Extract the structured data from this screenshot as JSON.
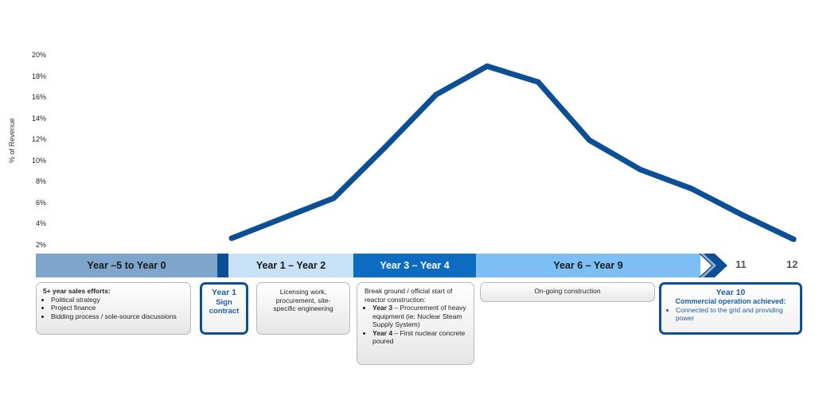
{
  "chart_data": {
    "type": "line",
    "ylabel": "% of Revenue",
    "ylim": [
      2,
      20
    ],
    "yticks": [
      "2%",
      "4%",
      "6%",
      "8%",
      "10%",
      "12%",
      "14%",
      "16%",
      "18%",
      "20%"
    ],
    "x": [
      1,
      2,
      3,
      4,
      5,
      6,
      7,
      8,
      9,
      10,
      11,
      12
    ],
    "values": [
      2.7,
      4.6,
      6.5,
      11.3,
      16.3,
      19.0,
      17.5,
      12.0,
      9.2,
      7.4,
      4.9,
      2.6
    ],
    "color": "#0d4f94"
  },
  "timeline": {
    "bands": [
      {
        "label": "Year –5 to Year 0",
        "bg": "#7ea6cd",
        "color": "#1a1a1a"
      },
      {
        "label": "",
        "bg": "#0d4f94",
        "color": "#ffffff"
      },
      {
        "label": "Year 1 – Year 2",
        "bg": "#c7e1f7",
        "color": "#1a1a1a"
      },
      {
        "label": "Year 3 – Year 4",
        "bg": "#0d6bc1",
        "color": "#ffffff"
      },
      {
        "label": "Year 6 – Year 9",
        "bg": "#7dbef5",
        "color": "#1a1a1a"
      }
    ],
    "arrow_color": "#0d4f94",
    "end_labels": [
      "11",
      "12"
    ]
  },
  "boxes": {
    "sales": {
      "title": "5+ year sales efforts:",
      "items": [
        "Political strategy",
        "Project finance",
        "Bidding process / sole-source discussions"
      ]
    },
    "year1": {
      "title": "Year 1",
      "line1": "Sign",
      "line2": "contract"
    },
    "licensing": {
      "text": "Licensing work, procurement, site-specific engineering"
    },
    "construction_start": {
      "intro": "Break ground / official start of reactor construction:",
      "items": [
        {
          "bold": "Year 3",
          "text": " – Procurement of heavy equipment (ie: Nuclear Steam Supply System)"
        },
        {
          "bold": "Year 4",
          "text": " – First nuclear concrete poured"
        }
      ]
    },
    "ongoing": {
      "text": "On-going construction"
    },
    "year10": {
      "title": "Year 10",
      "subtitle": "Commercial operation achieved:",
      "items": [
        "Connected to the grid and providing power"
      ]
    }
  }
}
